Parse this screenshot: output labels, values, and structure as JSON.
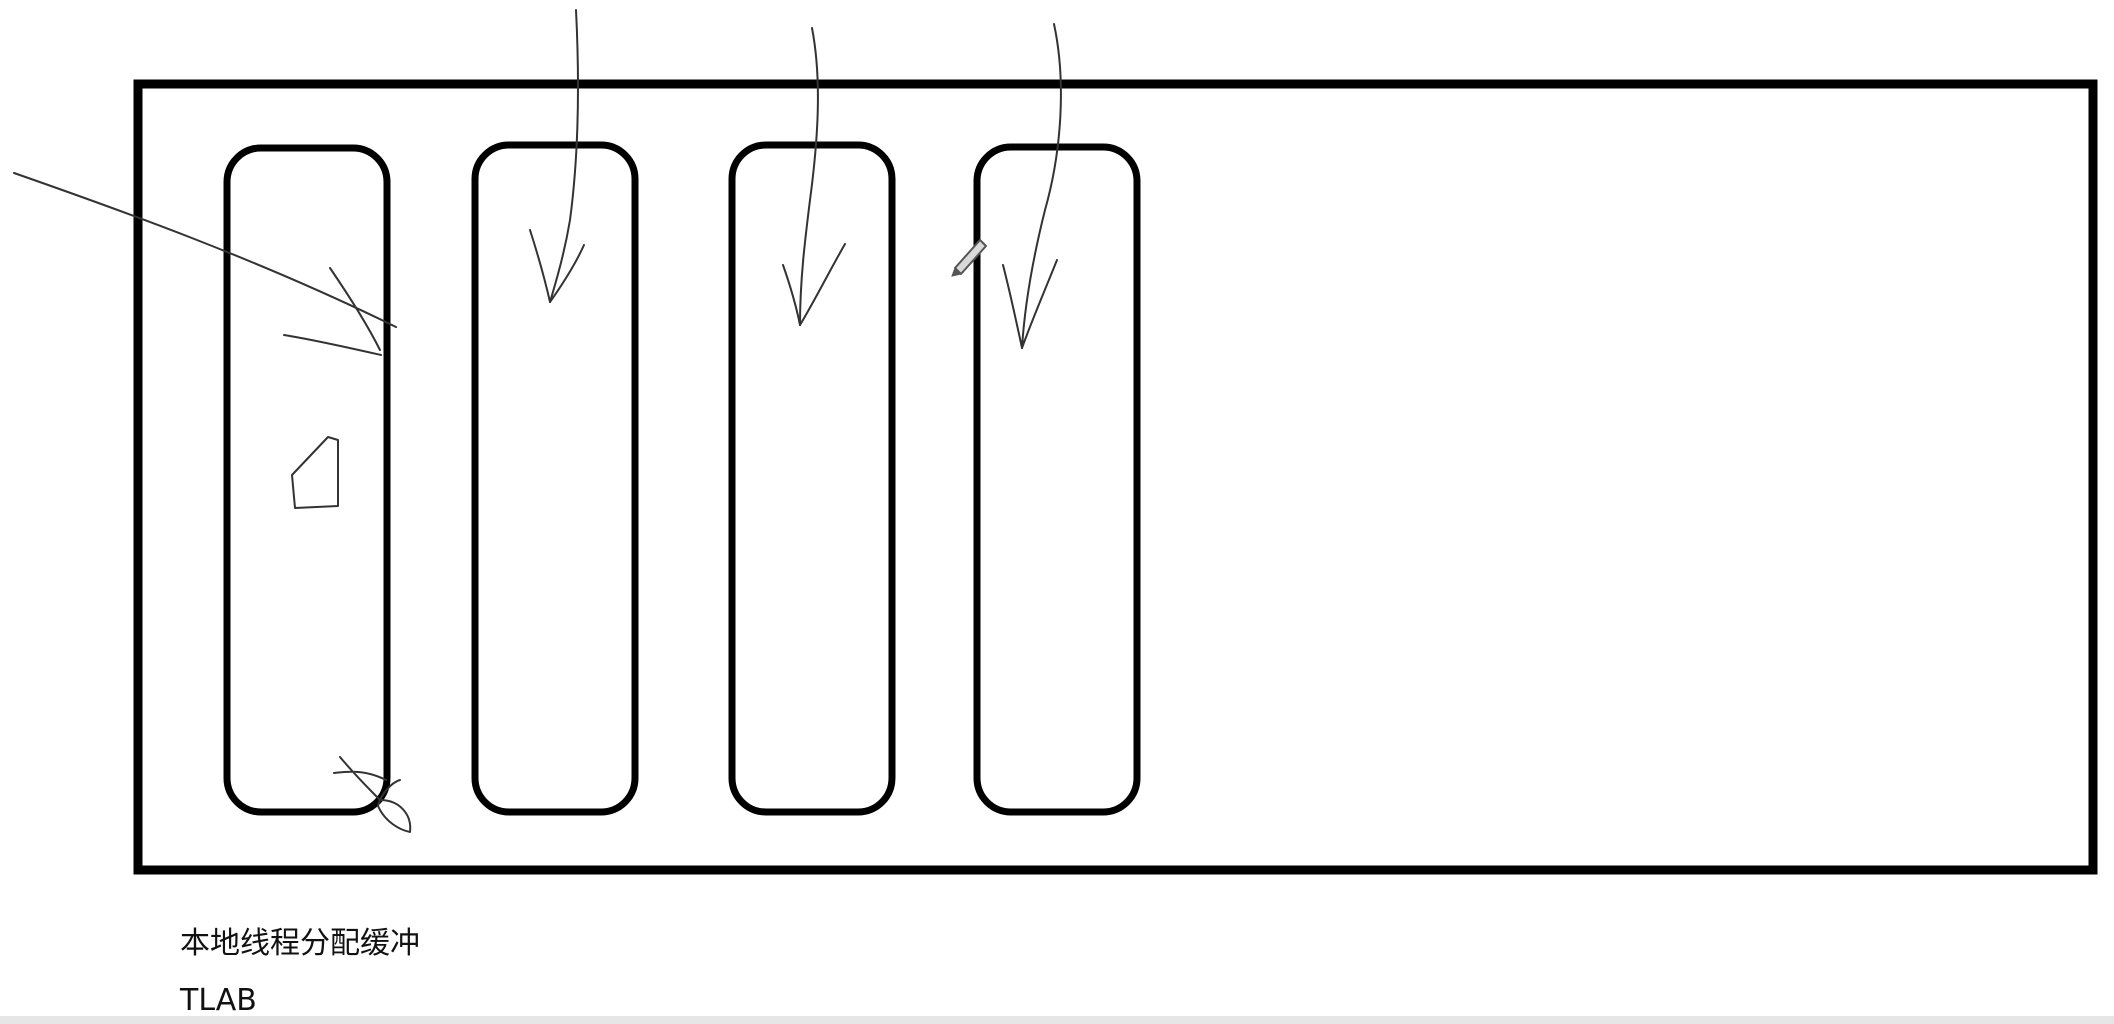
{
  "labels": {
    "caption_zh": "本地线程分配缓冲",
    "caption_en": "TLAB"
  },
  "colors": {
    "ink": "#000000",
    "background": "#ffffff"
  },
  "icons": {
    "cursor": "pencil-cursor-icon"
  }
}
